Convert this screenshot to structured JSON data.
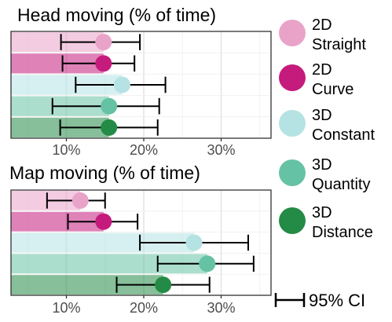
{
  "chart_data": [
    {
      "type": "bar",
      "title": "Head moving (% of time)",
      "xlabel": "",
      "ylabel": "",
      "xlim": [
        0,
        38
      ],
      "x_ticks": [
        "10%",
        "20%",
        "30%"
      ],
      "x_tick_values": [
        10,
        20,
        30
      ],
      "categories": [
        "2D Straight",
        "2D Curve",
        "3D Constant",
        "3D Quantity",
        "3D Distance"
      ],
      "values": [
        14.8,
        14.8,
        17.2,
        15.5,
        15.5
      ],
      "ci_low": [
        9.3,
        9.5,
        11.2,
        8.2,
        9.2
      ],
      "ci_high": [
        19.5,
        18.8,
        22.8,
        22.0,
        21.8
      ],
      "grid": true
    },
    {
      "type": "bar",
      "title": "Map moving (% of time)",
      "xlabel": "",
      "ylabel": "",
      "xlim": [
        0,
        38
      ],
      "x_ticks": [
        "10%",
        "20%",
        "30%"
      ],
      "x_tick_values": [
        10,
        20,
        30
      ],
      "categories": [
        "2D Straight",
        "2D Curve",
        "3D Constant",
        "3D Quantity",
        "3D Distance"
      ],
      "values": [
        11.8,
        14.8,
        26.5,
        28.2,
        22.5
      ],
      "ci_low": [
        7.5,
        10.2,
        19.5,
        21.8,
        16.5
      ],
      "ci_high": [
        15.0,
        19.2,
        33.5,
        34.2,
        28.5
      ],
      "grid": true
    }
  ],
  "legend": {
    "placement": "right",
    "items": [
      {
        "line1": "2D",
        "line2": "Straight",
        "color": "#e9a3c9"
      },
      {
        "line1": "2D",
        "line2": "Curve",
        "color": "#c51b7d"
      },
      {
        "line1": "3D",
        "line2": "Constant",
        "color": "#b5e2e3"
      },
      {
        "line1": "3D",
        "line2": "Quantity",
        "color": "#66c2a4"
      },
      {
        "line1": "3D",
        "line2": "Distance",
        "color": "#238b45"
      }
    ],
    "ci_label": "95% CI"
  }
}
